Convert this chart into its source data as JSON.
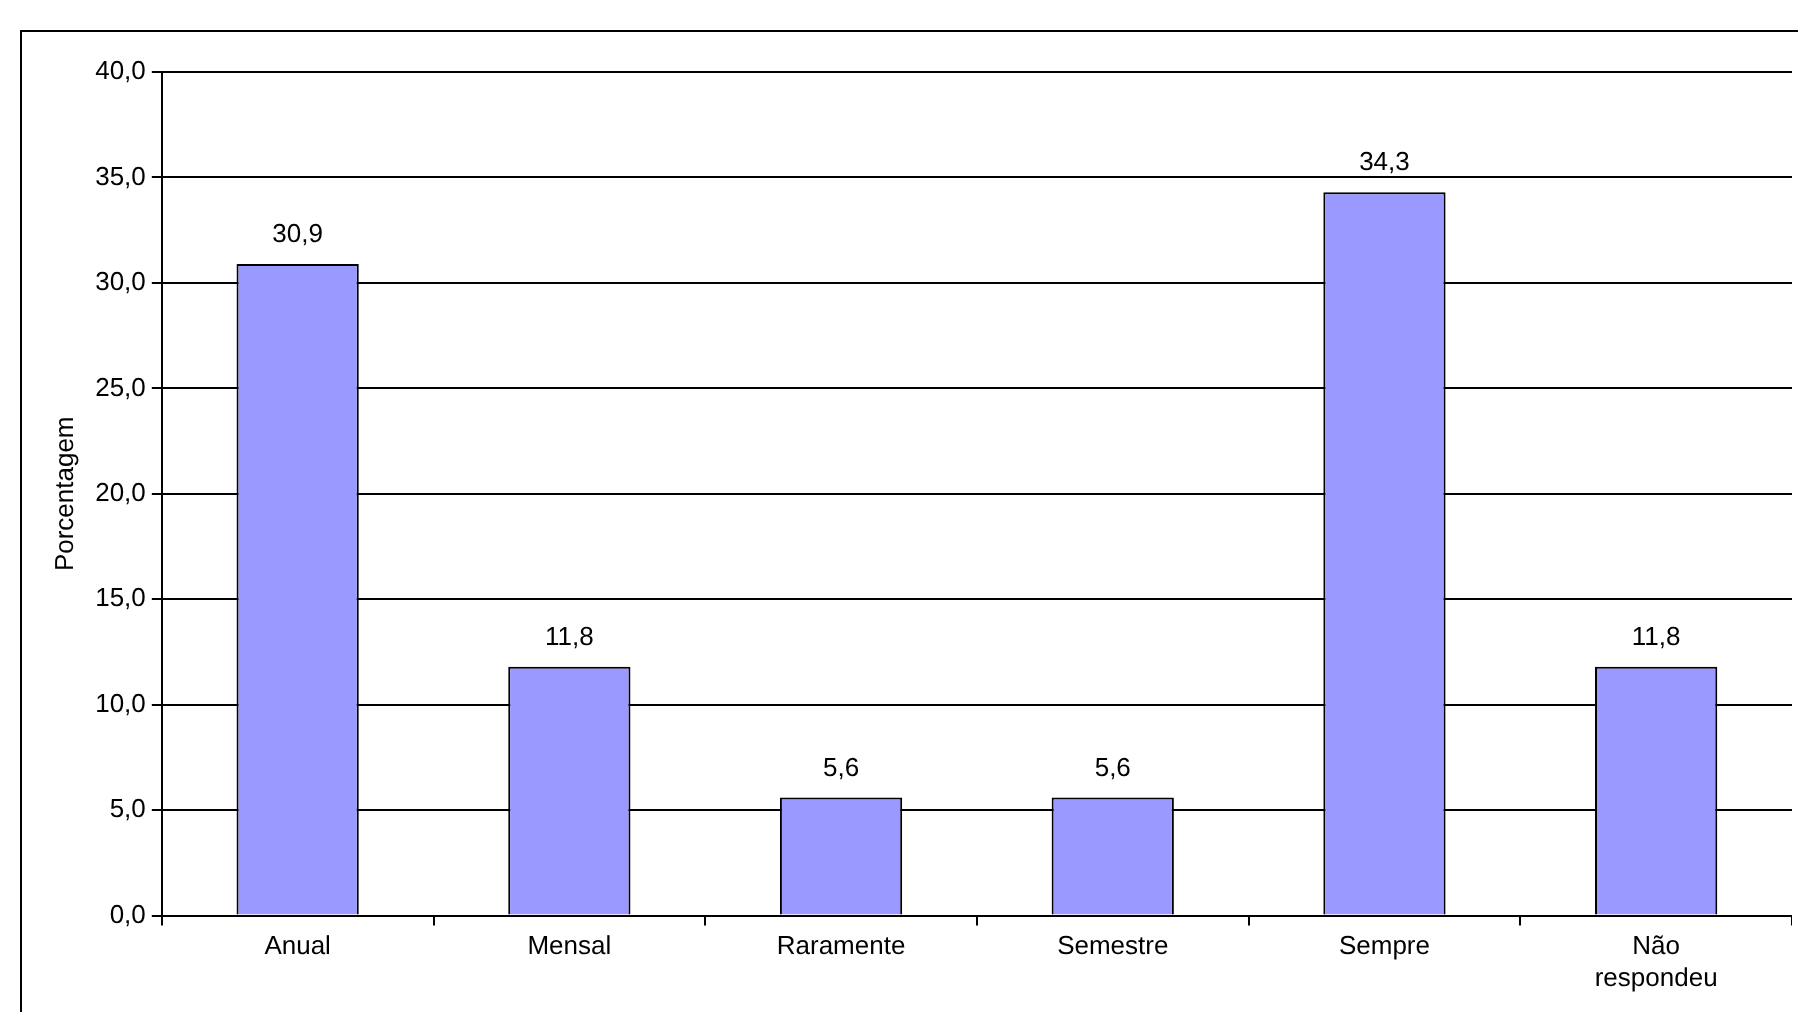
{
  "chart_data": {
    "type": "bar",
    "ylabel": "Porcentagem",
    "categories": [
      "Anual",
      "Mensal",
      "Raramente",
      "Semestre",
      "Sempre",
      "Não respondeu"
    ],
    "values": [
      30.9,
      11.8,
      5.6,
      5.6,
      34.3,
      11.8
    ],
    "value_labels": [
      "30,9",
      "11,8",
      "5,6",
      "5,6",
      "34,3",
      "11,8"
    ],
    "color": "#9999ff",
    "ylim": [
      0,
      40
    ],
    "yticks": [
      {
        "value": 0,
        "label": "0,0"
      },
      {
        "value": 5,
        "label": "5,0"
      },
      {
        "value": 10,
        "label": "10,0"
      },
      {
        "value": 15,
        "label": "15,0"
      },
      {
        "value": 20,
        "label": "20,0"
      },
      {
        "value": 25,
        "label": "25,0"
      },
      {
        "value": 30,
        "label": "30,0"
      },
      {
        "value": 35,
        "label": "35,0"
      },
      {
        "value": 40,
        "label": "40,0"
      }
    ],
    "grid": "y",
    "legend": false
  }
}
